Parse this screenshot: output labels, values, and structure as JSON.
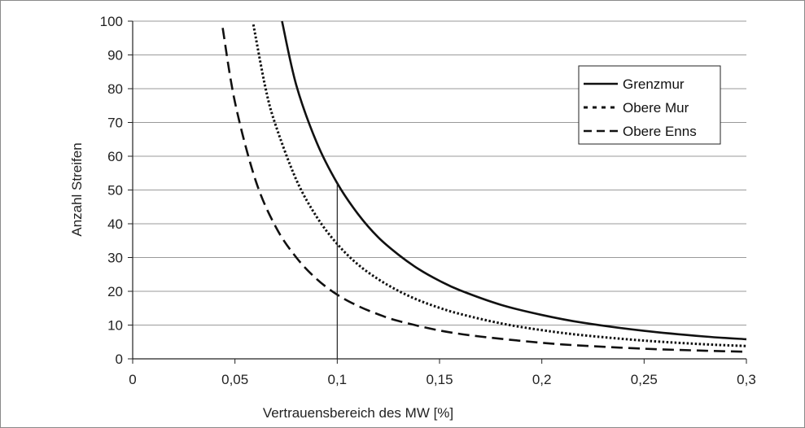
{
  "chart_data": {
    "type": "line",
    "xlabel": "Vertrauensbereich des MW [%]",
    "ylabel": "Anzahl Streifen",
    "xlim": [
      0,
      0.3
    ],
    "ylim": [
      0,
      100
    ],
    "x_ticks": [
      0,
      0.05,
      0.1,
      0.15,
      0.2,
      0.25,
      0.3
    ],
    "x_tick_labels": [
      "0",
      "0,05",
      "0,1",
      "0,15",
      "0,2",
      "0,25",
      "0,3"
    ],
    "y_ticks": [
      0,
      10,
      20,
      30,
      40,
      50,
      60,
      70,
      80,
      90,
      100
    ],
    "y_tick_labels": [
      "0",
      "10",
      "20",
      "30",
      "40",
      "50",
      "60",
      "70",
      "80",
      "90",
      "100"
    ],
    "grid": "horizontal",
    "legend_position": "top-right",
    "series": [
      {
        "name": "Grenzmur",
        "style": "solid",
        "color": "#111111",
        "x": [
          0.073,
          0.08,
          0.09,
          0.1,
          0.11,
          0.12,
          0.13,
          0.14,
          0.15,
          0.16,
          0.18,
          0.2,
          0.22,
          0.25,
          0.28,
          0.3
        ],
        "y": [
          100,
          81,
          64,
          52,
          43,
          36,
          30.8,
          26.5,
          23.1,
          20.3,
          16.0,
          13.0,
          10.7,
          8.3,
          6.6,
          5.8
        ]
      },
      {
        "name": "Obere Mur",
        "style": "dotted",
        "color": "#111111",
        "x": [
          0.059,
          0.065,
          0.07,
          0.08,
          0.09,
          0.1,
          0.11,
          0.12,
          0.13,
          0.14,
          0.15,
          0.16,
          0.18,
          0.2,
          0.22,
          0.25,
          0.28,
          0.3
        ],
        "y": [
          99,
          80,
          69,
          53,
          42,
          34,
          28,
          23.6,
          20.1,
          17.3,
          15.1,
          13.3,
          10.5,
          8.5,
          7.0,
          5.4,
          4.3,
          3.8
        ]
      },
      {
        "name": "Obere Enns",
        "style": "dashed",
        "color": "#111111",
        "x": [
          0.044,
          0.05,
          0.06,
          0.07,
          0.08,
          0.09,
          0.1,
          0.11,
          0.12,
          0.13,
          0.15,
          0.17,
          0.2,
          0.22,
          0.25,
          0.28,
          0.3
        ],
        "y": [
          98,
          76,
          53,
          39,
          30,
          23.6,
          19,
          15.7,
          13.2,
          11.2,
          8.4,
          6.6,
          4.75,
          3.9,
          3.0,
          2.4,
          2.1
        ]
      }
    ],
    "annotations": [
      {
        "type": "vertical-line",
        "x": 0.1,
        "y_from": 0,
        "y_to": 52
      }
    ]
  }
}
